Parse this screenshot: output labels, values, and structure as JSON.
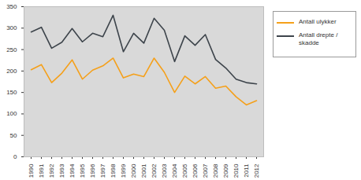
{
  "chart_data": {
    "type": "line",
    "categories": [
      "1990",
      "1991",
      "1992",
      "1993",
      "1994",
      "1995",
      "1996",
      "1997",
      "1998",
      "1999",
      "2000",
      "2001",
      "2002",
      "2003",
      "2004",
      "2005",
      "2006",
      "2007",
      "2008",
      "2009",
      "2010",
      "2011",
      "2012"
    ],
    "series": [
      {
        "name": "Antall ulykker",
        "color": "#f5a01a",
        "values": [
          203,
          215,
          173,
          195,
          226,
          181,
          202,
          212,
          230,
          184,
          193,
          187,
          230,
          197,
          150,
          188,
          170,
          187,
          160,
          165,
          140,
          121,
          131
        ]
      },
      {
        "name": "Antall drepte / skadde",
        "color": "#3d444b",
        "values": [
          291,
          302,
          253,
          267,
          299,
          268,
          288,
          280,
          330,
          245,
          288,
          265,
          323,
          295,
          222,
          282,
          260,
          285,
          227,
          207,
          181,
          173,
          170
        ]
      }
    ],
    "ylim": [
      0,
      350
    ],
    "yticks": [
      0,
      50,
      100,
      150,
      200,
      250,
      300,
      350
    ],
    "grid": false,
    "legend": "right"
  }
}
